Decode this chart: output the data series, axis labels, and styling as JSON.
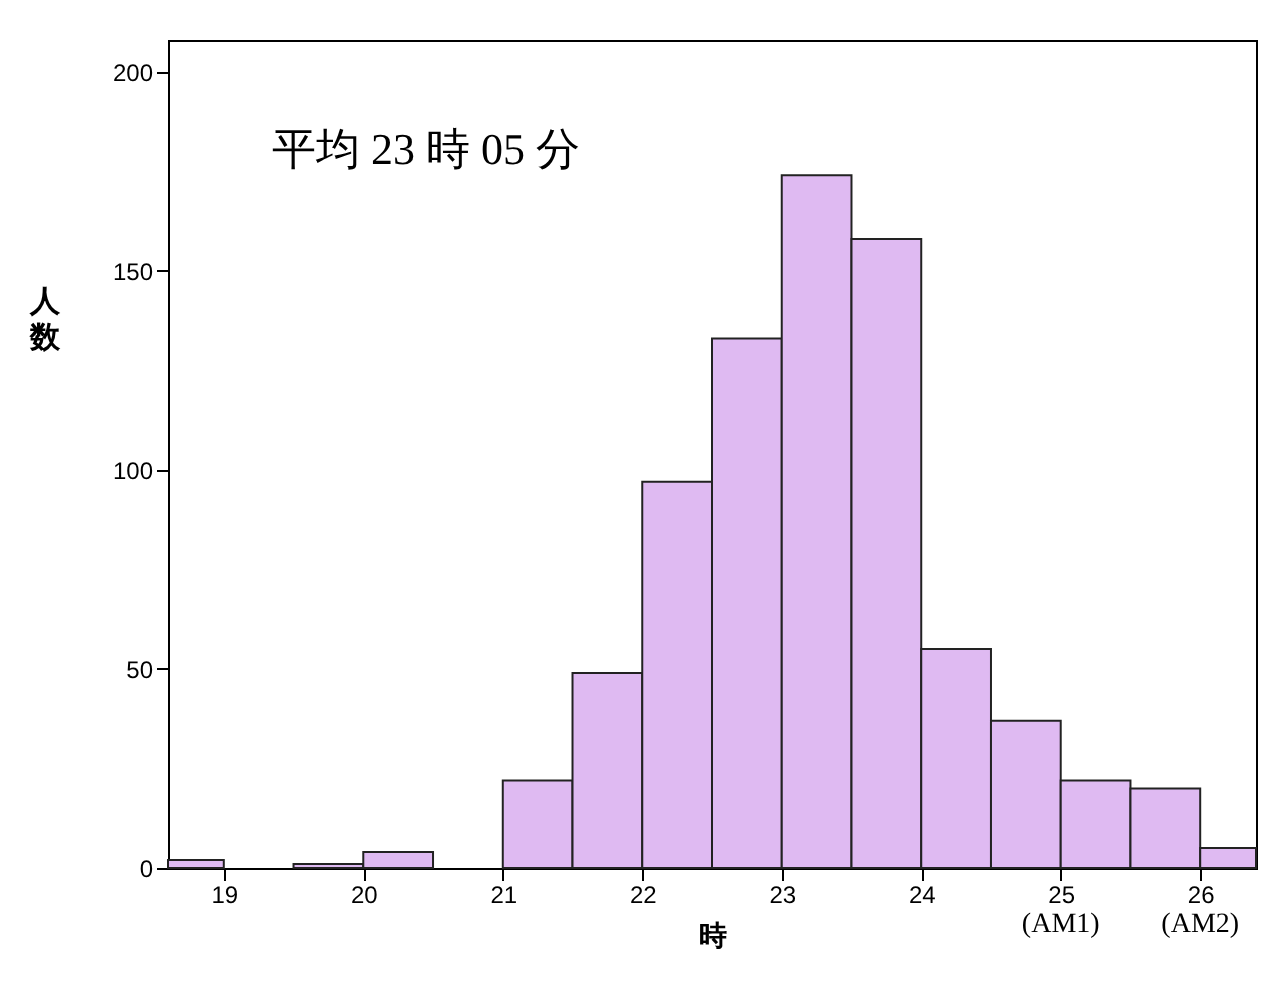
{
  "chart_data": {
    "type": "histogram",
    "xlabel": "時",
    "ylabel": "人数",
    "annotations": [
      "平均 23 時 05 分",
      "(AM1)",
      "(AM2)"
    ],
    "bins": [
      18.6,
      19,
      19.5,
      20,
      20.5,
      21,
      21.5,
      22,
      22.5,
      23,
      23.5,
      24,
      24.5,
      25,
      25.5,
      26,
      26.4
    ],
    "values": [
      2,
      0,
      1,
      4,
      0,
      22,
      49,
      97,
      133,
      174,
      158,
      55,
      37,
      22,
      20,
      5
    ],
    "color": "#dfbaf2",
    "xlim": [
      18.6,
      26.4
    ],
    "xticks": [
      19,
      20,
      21,
      22,
      23,
      24,
      25,
      26
    ],
    "ylim": [
      0,
      208
    ],
    "yticks": [
      0,
      50,
      100,
      150,
      200
    ],
    "grid": false
  }
}
